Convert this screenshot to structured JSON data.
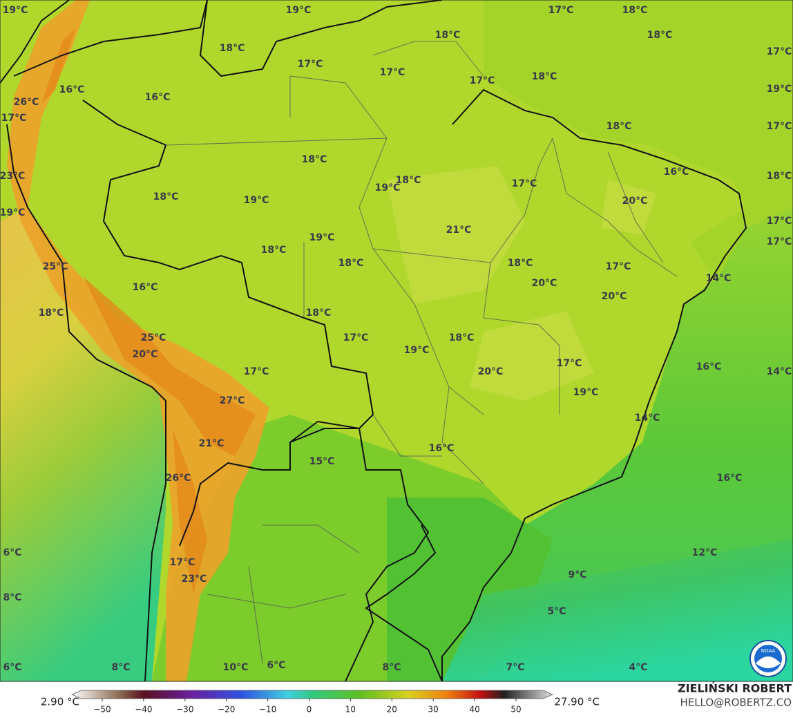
{
  "map": {
    "labels": [
      "19°C",
      "19°C",
      "17°C",
      "18°C",
      "18°C",
      "18°C",
      "18°C",
      "17°C",
      "17°C",
      "17°C",
      "17°C",
      "18°C",
      "16°C",
      "19°C",
      "16°C",
      "26°C",
      "17°C",
      "18°C",
      "17°C",
      "18°C",
      "18°C",
      "19°C",
      "19°C",
      "18°C",
      "17°C",
      "16°C",
      "23°C",
      "18°C",
      "20°C",
      "19°C",
      "17°C",
      "21°C",
      "19°C",
      "17°C",
      "18°C",
      "18°C",
      "18°C",
      "25°C",
      "17°C",
      "20°C",
      "16°C",
      "14°C",
      "20°C",
      "18°C",
      "18°C",
      "17°C",
      "18°C",
      "25°C",
      "19°C",
      "20°C",
      "17°C",
      "16°C",
      "17°C",
      "20°C",
      "14°C",
      "19°C",
      "27°C",
      "14°C",
      "21°C",
      "16°C",
      "15°C",
      "26°C",
      "16°C",
      "6°C",
      "12°C",
      "17°C",
      "23°C",
      "9°C",
      "8°C",
      "5°C",
      "6°C",
      "8°C",
      "10°C",
      "6°C",
      "8°C",
      "7°C",
      "4°C"
    ],
    "colorbar": {
      "min_label": "2.90 °C",
      "max_label": "27.90 °C",
      "ticks": [
        {
          "value": -50,
          "label": "−50"
        },
        {
          "value": -40,
          "label": "−40"
        },
        {
          "value": -30,
          "label": "−30"
        },
        {
          "value": -20,
          "label": "−20"
        },
        {
          "value": -10,
          "label": "−10"
        },
        0,
        10,
        20,
        30,
        40,
        50
      ]
    },
    "credit": {
      "name": "ZIELIŃSKI ROBERT",
      "email": "HELLO@ROBERTZ.CO"
    },
    "logo": "NOAA"
  }
}
